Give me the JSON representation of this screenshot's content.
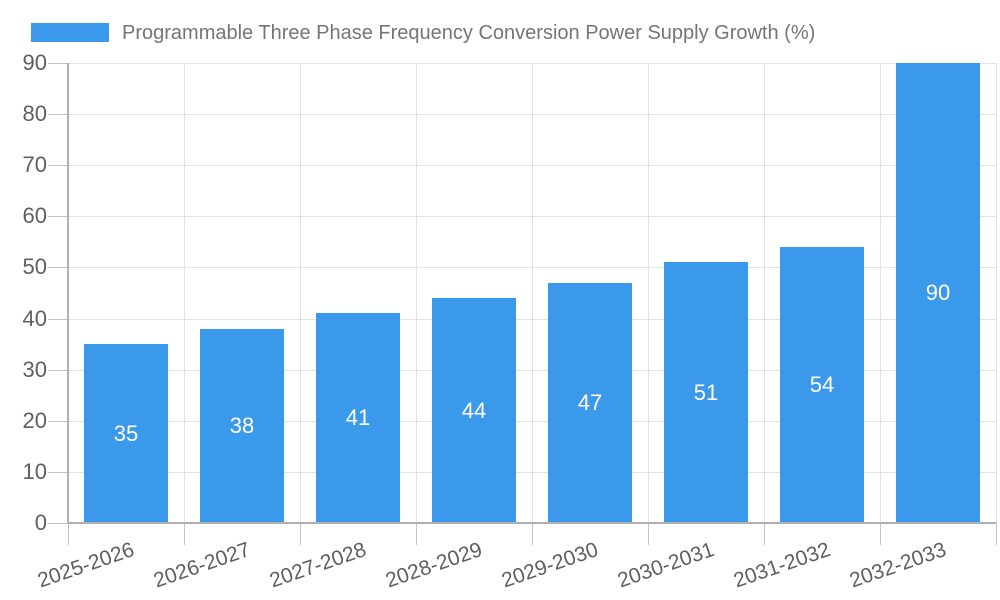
{
  "chart_data": {
    "type": "bar",
    "title": "Programmable Three Phase Frequency Conversion Power Supply Growth (%)",
    "legend_position": "top-left",
    "categories": [
      "2025-2026",
      "2026-2027",
      "2027-2028",
      "2028-2029",
      "2029-2030",
      "2030-2031",
      "2031-2032",
      "2032-2033"
    ],
    "values": [
      35,
      38,
      41,
      44,
      47,
      51,
      54,
      90
    ],
    "value_labels_shown": true,
    "xlabel": "",
    "ylabel": "",
    "ylim": [
      0,
      90
    ],
    "yticks": [
      0,
      10,
      20,
      30,
      40,
      50,
      60,
      70,
      80,
      90
    ],
    "grid": true,
    "x_label_rotation_deg": -19,
    "colors": {
      "bar": "#3B99EC",
      "value_label": "#FFFFFF",
      "legend_text": "#757575",
      "axis_text": "#5F5F5F",
      "axis_line": "#B0B0B0",
      "gridline": "#E3E3E3",
      "tick": "#C2C2C2",
      "background": "#FFFFFF"
    }
  }
}
